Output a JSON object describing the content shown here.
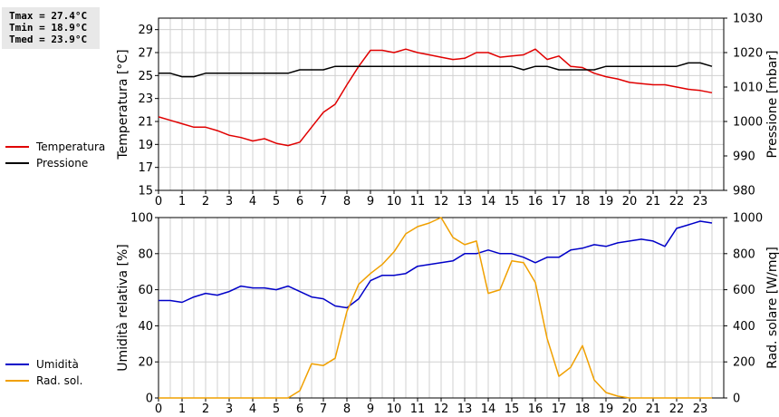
{
  "stats": {
    "tmax": "Tmax = 27.4°C",
    "tmin": "Tmin = 18.9°C",
    "tmed": "Tmed = 23.9°C"
  },
  "colors": {
    "temperature": "#e00000",
    "pressure": "#000000",
    "humidity": "#0000c8",
    "radiation": "#f0a000",
    "grid": "#d0d0d0"
  },
  "chart_data": [
    {
      "type": "line",
      "x_ticks": [
        0,
        1,
        2,
        3,
        4,
        5,
        6,
        7,
        8,
        9,
        10,
        11,
        12,
        13,
        14,
        15,
        16,
        17,
        18,
        19,
        20,
        21,
        22,
        23
      ],
      "xlim": [
        0,
        24
      ],
      "ylabel": "Temperatura [°C]",
      "ylim": [
        15,
        30
      ],
      "y_ticks": [
        15,
        17,
        19,
        21,
        23,
        25,
        27,
        29
      ],
      "y2label": "Pressione [mbar]",
      "y2lim": [
        980,
        1030
      ],
      "y2_ticks": [
        980,
        990,
        1000,
        1010,
        1020,
        1030
      ],
      "grid": true,
      "legend_position": "left",
      "series": [
        {
          "name": "Temperatura",
          "axis": "left",
          "x": [
            0,
            0.5,
            1,
            1.5,
            2,
            2.5,
            3,
            3.5,
            4,
            4.5,
            5,
            5.5,
            6,
            6.5,
            7,
            7.5,
            8,
            8.5,
            9,
            9.5,
            10,
            10.5,
            11,
            11.5,
            12,
            12.5,
            13,
            13.5,
            14,
            14.5,
            15,
            15.5,
            16,
            16.5,
            17,
            17.5,
            18,
            18.5,
            19,
            19.5,
            20,
            20.5,
            21,
            21.5,
            22,
            22.5,
            23,
            23.5
          ],
          "values": [
            21.4,
            21.1,
            20.8,
            20.5,
            20.5,
            20.2,
            19.8,
            19.6,
            19.3,
            19.5,
            19.1,
            18.9,
            19.2,
            20.5,
            21.8,
            22.5,
            24.2,
            25.8,
            27.2,
            27.2,
            27.0,
            27.3,
            27.0,
            26.8,
            26.6,
            26.4,
            26.5,
            27.0,
            27.0,
            26.6,
            26.7,
            26.8,
            27.3,
            26.4,
            26.7,
            25.8,
            25.7,
            25.2,
            24.9,
            24.7,
            24.4,
            24.3,
            24.2,
            24.2,
            24.0,
            23.8,
            23.7,
            23.5
          ]
        },
        {
          "name": "Pressione",
          "axis": "right",
          "x": [
            0,
            0.5,
            1,
            1.5,
            2,
            2.5,
            3,
            3.5,
            4,
            4.5,
            5,
            5.5,
            6,
            6.5,
            7,
            7.5,
            8,
            8.5,
            9,
            9.5,
            10,
            10.5,
            11,
            11.5,
            12,
            12.5,
            13,
            13.5,
            14,
            14.5,
            15,
            15.5,
            16,
            16.5,
            17,
            17.5,
            18,
            18.5,
            19,
            19.5,
            20,
            20.5,
            21,
            21.5,
            22,
            22.5,
            23,
            23.5
          ],
          "values": [
            1014,
            1014,
            1013,
            1013,
            1014,
            1014,
            1014,
            1014,
            1014,
            1014,
            1014,
            1014,
            1015,
            1015,
            1015,
            1016,
            1016,
            1016,
            1016,
            1016,
            1016,
            1016,
            1016,
            1016,
            1016,
            1016,
            1016,
            1016,
            1016,
            1016,
            1016,
            1015,
            1016,
            1016,
            1015,
            1015,
            1015,
            1015,
            1016,
            1016,
            1016,
            1016,
            1016,
            1016,
            1016,
            1017,
            1017,
            1016
          ]
        }
      ]
    },
    {
      "type": "line",
      "x_ticks": [
        0,
        1,
        2,
        3,
        4,
        5,
        6,
        7,
        8,
        9,
        10,
        11,
        12,
        13,
        14,
        15,
        16,
        17,
        18,
        19,
        20,
        21,
        22,
        23
      ],
      "xlim": [
        0,
        24
      ],
      "ylabel": "Umidità relativa [%]",
      "ylim": [
        0,
        100
      ],
      "y_ticks": [
        0,
        20,
        40,
        60,
        80,
        100
      ],
      "y2label": "Rad. solare [W/mq]",
      "y2lim": [
        0,
        1000
      ],
      "y2_ticks": [
        0,
        200,
        400,
        600,
        800,
        1000
      ],
      "grid": true,
      "legend_position": "left",
      "series": [
        {
          "name": "Umidità",
          "axis": "left",
          "x": [
            0,
            0.5,
            1,
            1.5,
            2,
            2.5,
            3,
            3.5,
            4,
            4.5,
            5,
            5.5,
            6,
            6.5,
            7,
            7.5,
            8,
            8.5,
            9,
            9.5,
            10,
            10.5,
            11,
            11.5,
            12,
            12.5,
            13,
            13.5,
            14,
            14.5,
            15,
            15.5,
            16,
            16.5,
            17,
            17.5,
            18,
            18.5,
            19,
            19.5,
            20,
            20.5,
            21,
            21.5,
            22,
            22.5,
            23,
            23.5
          ],
          "values": [
            54,
            54,
            53,
            56,
            58,
            57,
            59,
            62,
            61,
            61,
            60,
            62,
            59,
            56,
            55,
            51,
            50,
            55,
            65,
            68,
            68,
            69,
            73,
            74,
            75,
            76,
            80,
            80,
            82,
            80,
            80,
            78,
            75,
            78,
            78,
            82,
            83,
            85,
            84,
            86,
            87,
            88,
            87,
            84,
            94,
            96,
            98,
            97
          ]
        },
        {
          "name": "Rad. sol.",
          "axis": "right",
          "x": [
            0,
            0.5,
            1,
            1.5,
            2,
            2.5,
            3,
            3.5,
            4,
            4.5,
            5,
            5.5,
            6,
            6.5,
            7,
            7.5,
            8,
            8.5,
            9,
            9.5,
            10,
            10.5,
            11,
            11.5,
            12,
            12.5,
            13,
            13.5,
            14,
            14.5,
            15,
            15.5,
            16,
            16.5,
            17,
            17.5,
            18,
            18.5,
            19,
            19.5,
            20,
            20.5,
            21,
            21.5,
            22,
            22.5,
            23,
            23.5
          ],
          "values": [
            0,
            0,
            0,
            0,
            0,
            0,
            0,
            0,
            0,
            0,
            0,
            0,
            40,
            190,
            180,
            220,
            480,
            630,
            690,
            740,
            810,
            910,
            950,
            970,
            1010,
            890,
            850,
            870,
            580,
            600,
            760,
            750,
            640,
            330,
            120,
            170,
            290,
            100,
            30,
            10,
            0,
            0,
            0,
            0,
            0,
            0,
            0,
            0
          ]
        }
      ]
    }
  ]
}
